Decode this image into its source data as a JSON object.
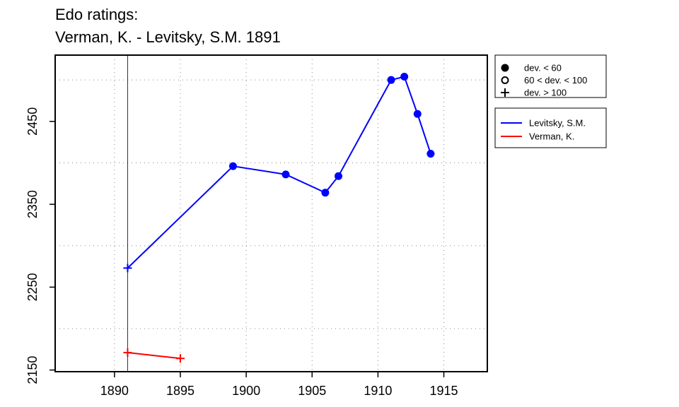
{
  "chart_data": {
    "type": "line",
    "title": "Edo ratings:",
    "subtitle": "Verman, K. - Levitsky, S.M. 1891",
    "xlabel": "",
    "ylabel": "",
    "xlim": [
      1885.5,
      1918.3
    ],
    "ylim": [
      2148,
      2530
    ],
    "x_ticks": [
      1890,
      1895,
      1900,
      1905,
      1910,
      1915
    ],
    "y_ticks": [
      2150,
      2250,
      2350,
      2450
    ],
    "x_grid": [
      1890,
      1895,
      1900,
      1905,
      1910,
      1915
    ],
    "y_grid": [
      2200,
      2300,
      2400,
      2500
    ],
    "grid": true,
    "marker_line_x": 1891,
    "series": [
      {
        "name": "Levitsky, S.M.",
        "color": "#0000ff",
        "points": [
          {
            "x": 1891,
            "y": 2273,
            "marker": "plus"
          },
          {
            "x": 1899,
            "y": 2396,
            "marker": "dot"
          },
          {
            "x": 1903,
            "y": 2386,
            "marker": "dot"
          },
          {
            "x": 1906,
            "y": 2364,
            "marker": "dot"
          },
          {
            "x": 1907,
            "y": 2384,
            "marker": "dot"
          },
          {
            "x": 1911,
            "y": 2500,
            "marker": "dot"
          },
          {
            "x": 1912,
            "y": 2504,
            "marker": "dot"
          },
          {
            "x": 1913,
            "y": 2459,
            "marker": "dot"
          },
          {
            "x": 1914,
            "y": 2411,
            "marker": "dot"
          }
        ]
      },
      {
        "name": "Verman, K.",
        "color": "#ff0000",
        "points": [
          {
            "x": 1891,
            "y": 2171,
            "marker": "plus"
          },
          {
            "x": 1895,
            "y": 2164,
            "marker": "plus"
          }
        ]
      }
    ],
    "legend_markers": [
      {
        "label": "dev. < 60",
        "symbol": "dot"
      },
      {
        "label": "60 < dev. < 100",
        "symbol": "circle"
      },
      {
        "label": "dev. > 100",
        "symbol": "plus"
      }
    ],
    "legend_placement": "right"
  }
}
